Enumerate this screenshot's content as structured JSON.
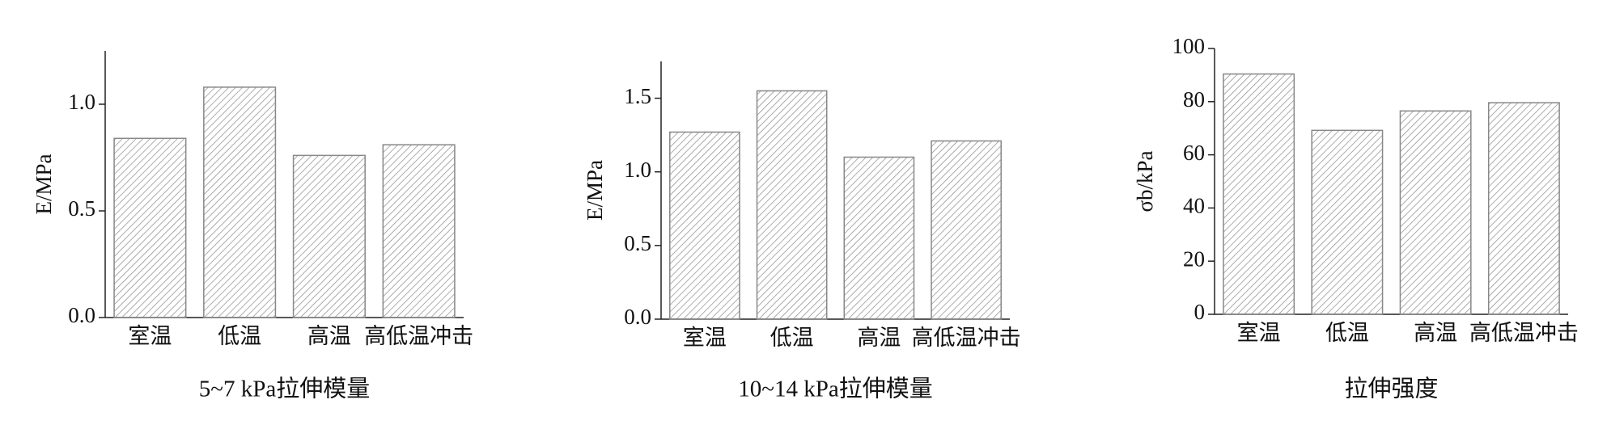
{
  "chart_data": [
    {
      "type": "bar",
      "title": "5~7 kPa拉伸模量",
      "y_label": "E/MPa",
      "categories": [
        "室温",
        "低温",
        "高温",
        "高低温冲击"
      ],
      "values": [
        0.84,
        1.08,
        0.76,
        0.81
      ],
      "color": "#888888",
      "ylim": [
        0,
        1.25
      ],
      "yticks": [
        {
          "value": 0,
          "label": "0.0"
        },
        0.5,
        {
          "value": 1,
          "label": "1.0"
        }
      ]
    },
    {
      "type": "bar",
      "title": "10~14 kPa拉伸模量",
      "y_label": "E/MPa",
      "categories": [
        "室温",
        "低温",
        "高温",
        "高低温冲击"
      ],
      "values": [
        1.27,
        1.55,
        1.1,
        1.21
      ],
      "color": "#888888",
      "ylim": [
        0,
        1.75
      ],
      "yticks": [
        {
          "value": 0,
          "label": "0.0"
        },
        0.5,
        {
          "value": 1,
          "label": "1.0"
        },
        1.5
      ]
    },
    {
      "type": "bar",
      "title": "拉伸强度",
      "y_label": "σb/kPa",
      "categories": [
        "室温",
        "低温",
        "高温",
        "高低温冲击"
      ],
      "values": [
        90.4,
        69.2,
        76.5,
        79.6
      ],
      "color": "#888888",
      "ylim": [
        0,
        100
      ],
      "yticks": [
        0,
        20,
        40,
        60,
        80,
        100
      ]
    }
  ]
}
